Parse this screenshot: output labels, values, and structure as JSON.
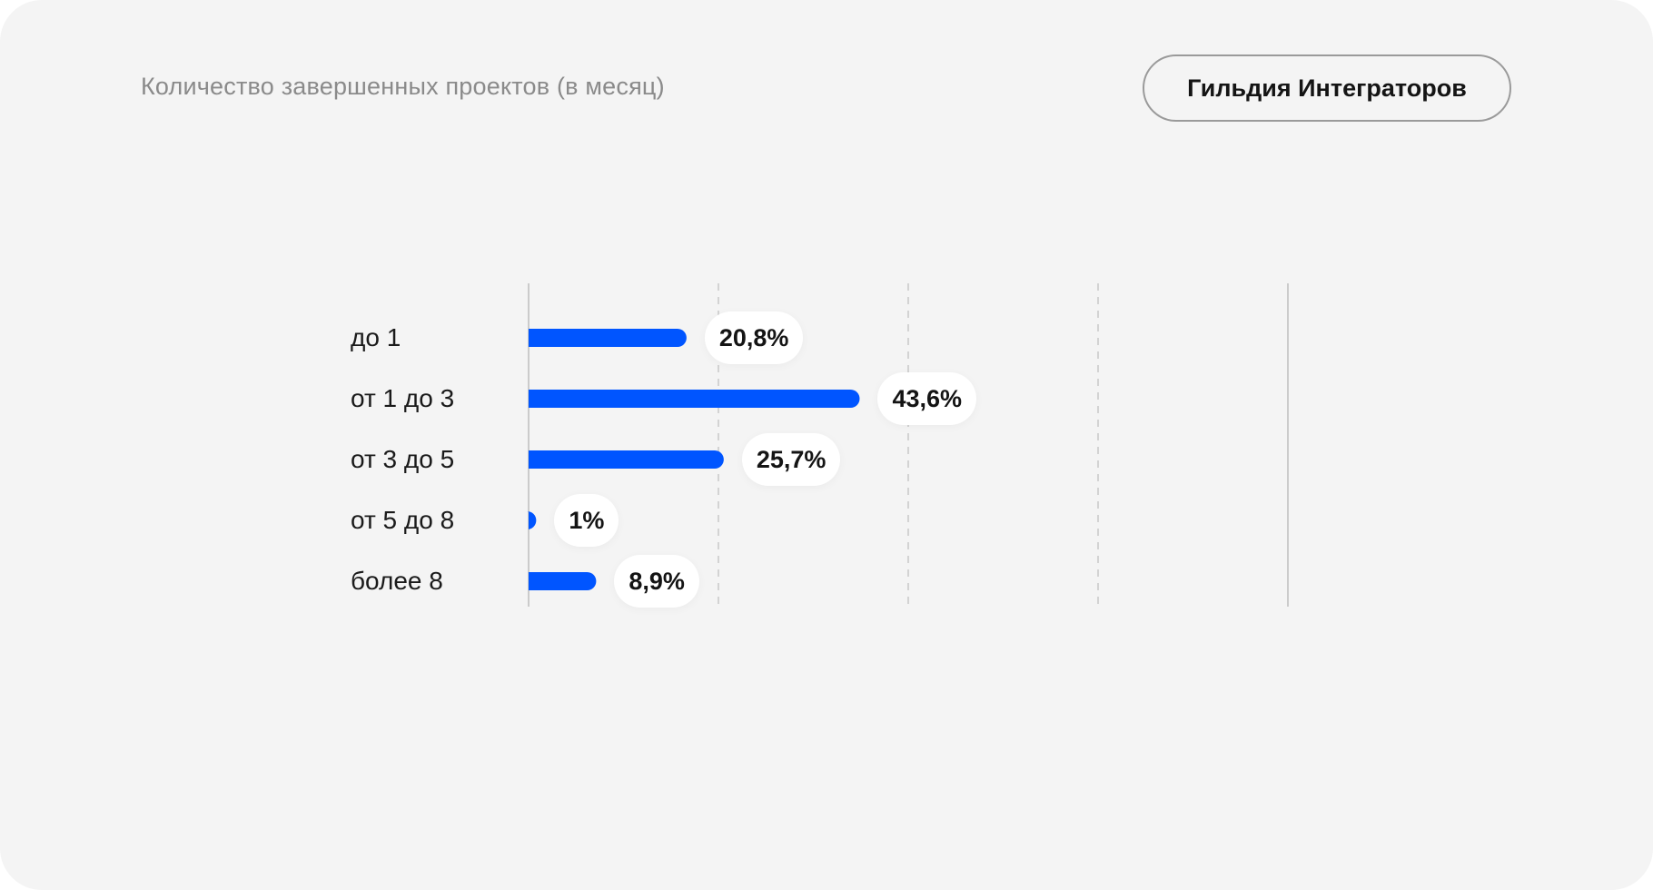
{
  "header": {
    "title": "Количество завершенных проектов (в месяц)",
    "badge_label": "Гильдия Интеграторов"
  },
  "colors": {
    "bar": "#0055ff",
    "background": "#f4f4f4",
    "grid": "#c8c8c8",
    "axis": "#bdbdbd"
  },
  "chart_data": {
    "type": "bar",
    "orientation": "horizontal",
    "title": "Количество завершенных проектов (в месяц)",
    "categories": [
      "до 1",
      "от 1 до 3",
      "от 3 до 5",
      "от 5 до 8",
      "более 8"
    ],
    "values": [
      20.8,
      43.6,
      25.7,
      1,
      8.9
    ],
    "value_labels": [
      "20,8%",
      "43,6%",
      "25,7%",
      "1%",
      "8,9%"
    ],
    "xlim": [
      0,
      100
    ],
    "grid": true,
    "grid_ticks": [
      25,
      50,
      75
    ],
    "unit": "%"
  }
}
